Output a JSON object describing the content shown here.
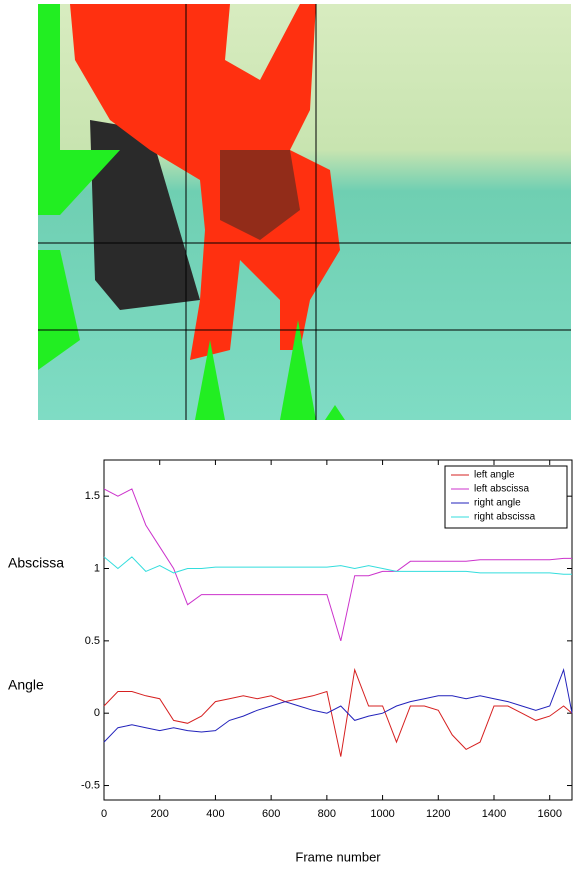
{
  "chart_data": {
    "type": "line",
    "xlabel": "Frame number",
    "side_labels": [
      "Abscissa",
      "Angle"
    ],
    "x": [
      0,
      50,
      100,
      150,
      200,
      250,
      300,
      350,
      400,
      450,
      500,
      550,
      600,
      650,
      700,
      750,
      800,
      850,
      900,
      950,
      1000,
      1050,
      1100,
      1150,
      1200,
      1250,
      1300,
      1350,
      1400,
      1450,
      1500,
      1550,
      1600,
      1650,
      1680
    ],
    "series": [
      {
        "name": "left angle",
        "color": "#d62020",
        "values": [
          0.05,
          0.15,
          0.15,
          0.12,
          0.1,
          -0.05,
          -0.07,
          -0.02,
          0.08,
          0.1,
          0.12,
          0.1,
          0.12,
          0.08,
          0.1,
          0.12,
          0.15,
          -0.3,
          0.3,
          0.05,
          0.05,
          -0.2,
          0.05,
          0.05,
          0.02,
          -0.15,
          -0.25,
          -0.2,
          0.05,
          0.05,
          0.0,
          -0.05,
          -0.02,
          0.05,
          0.0
        ]
      },
      {
        "name": "left abscissa",
        "color": "#cc33cc",
        "values": [
          1.55,
          1.5,
          1.55,
          1.3,
          1.15,
          1.0,
          0.75,
          0.82,
          0.82,
          0.82,
          0.82,
          0.82,
          0.82,
          0.82,
          0.82,
          0.82,
          0.82,
          0.5,
          0.95,
          0.95,
          0.98,
          0.98,
          1.05,
          1.05,
          1.05,
          1.05,
          1.05,
          1.06,
          1.06,
          1.06,
          1.06,
          1.06,
          1.06,
          1.07,
          1.07
        ]
      },
      {
        "name": "right angle",
        "color": "#2222bb",
        "values": [
          -0.2,
          -0.1,
          -0.08,
          -0.1,
          -0.12,
          -0.1,
          -0.12,
          -0.13,
          -0.12,
          -0.05,
          -0.02,
          0.02,
          0.05,
          0.08,
          0.05,
          0.02,
          0.0,
          0.05,
          -0.05,
          -0.02,
          0.0,
          0.05,
          0.08,
          0.1,
          0.12,
          0.12,
          0.1,
          0.12,
          0.1,
          0.08,
          0.05,
          0.02,
          0.05,
          0.3,
          0.0
        ]
      },
      {
        "name": "right abscissa",
        "color": "#33dddd",
        "values": [
          1.08,
          1.0,
          1.08,
          0.98,
          1.02,
          0.97,
          1.0,
          1.0,
          1.01,
          1.01,
          1.01,
          1.01,
          1.01,
          1.01,
          1.01,
          1.01,
          1.01,
          1.02,
          1.0,
          1.02,
          1.0,
          0.98,
          0.98,
          0.98,
          0.98,
          0.98,
          0.98,
          0.97,
          0.97,
          0.97,
          0.97,
          0.97,
          0.97,
          0.96,
          0.96
        ]
      }
    ],
    "xlim": [
      0,
      1680
    ],
    "xticks": [
      0,
      200,
      400,
      600,
      800,
      1000,
      1200,
      1400,
      1600
    ],
    "ylim": [
      -0.6,
      1.75
    ],
    "yticks": [
      -0.5,
      0,
      0.5,
      1,
      1.5
    ],
    "legend": "upper right"
  }
}
